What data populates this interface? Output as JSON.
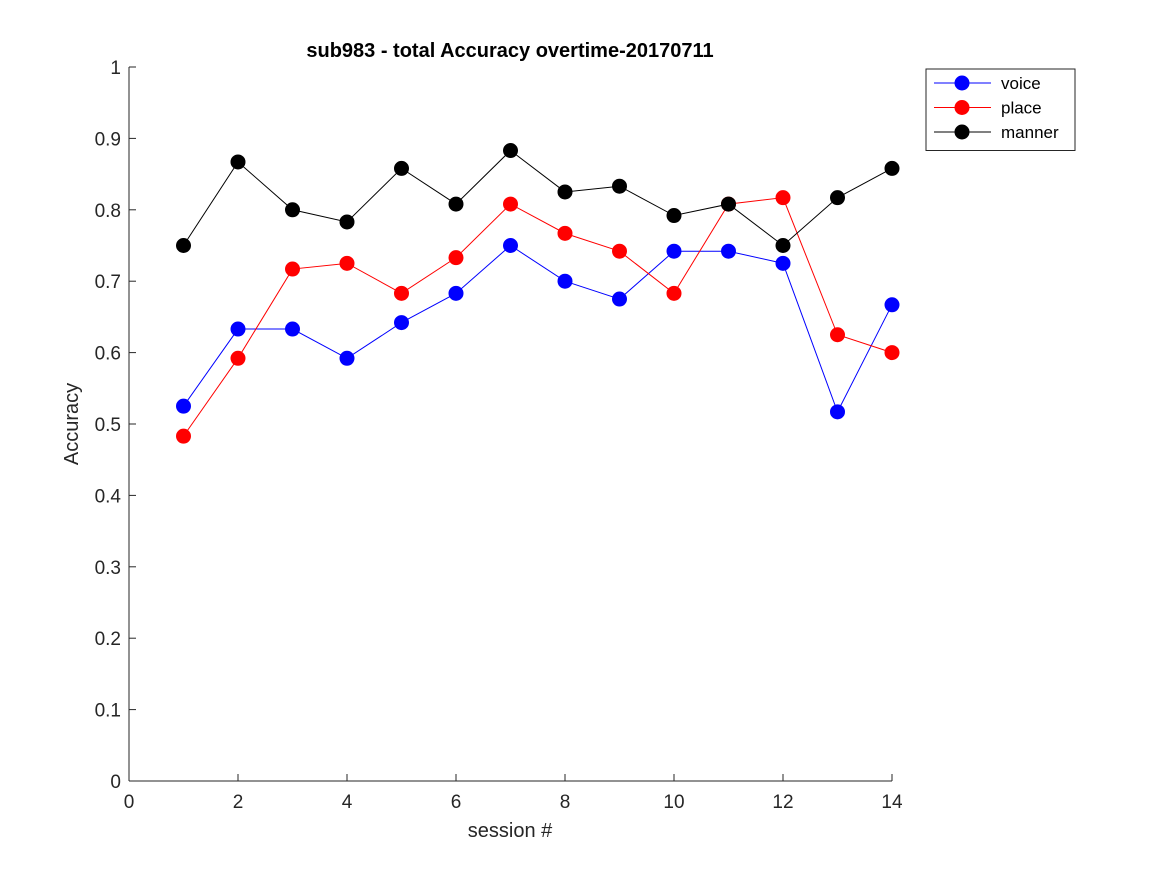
{
  "chart_data": {
    "type": "line",
    "title": "sub983 - total Accuracy overtime-20170711",
    "xlabel": "session #",
    "ylabel": "Accuracy",
    "xlim": [
      0,
      14
    ],
    "ylim": [
      0,
      1
    ],
    "xticks": [
      0,
      2,
      4,
      6,
      8,
      10,
      12,
      14
    ],
    "yticks": [
      0,
      0.1,
      0.2,
      0.3,
      0.4,
      0.5,
      0.6,
      0.7,
      0.8,
      0.9,
      1
    ],
    "grid": false,
    "legend_position": "outside top-right",
    "x": [
      1,
      2,
      3,
      4,
      5,
      6,
      7,
      8,
      9,
      10,
      11,
      12,
      13,
      14
    ],
    "series": [
      {
        "name": "voice",
        "color": "#0000ff",
        "values": [
          0.525,
          0.633,
          0.633,
          0.592,
          0.642,
          0.683,
          0.75,
          0.7,
          0.675,
          0.742,
          0.742,
          0.725,
          0.517,
          0.667
        ]
      },
      {
        "name": "place",
        "color": "#ff0000",
        "values": [
          0.483,
          0.592,
          0.717,
          0.725,
          0.683,
          0.733,
          0.808,
          0.767,
          0.742,
          0.683,
          0.808,
          0.817,
          0.625,
          0.6
        ]
      },
      {
        "name": "manner",
        "color": "#000000",
        "values": [
          0.75,
          0.867,
          0.8,
          0.783,
          0.858,
          0.808,
          0.883,
          0.825,
          0.833,
          0.792,
          0.808,
          0.75,
          0.817,
          0.858
        ]
      }
    ]
  }
}
